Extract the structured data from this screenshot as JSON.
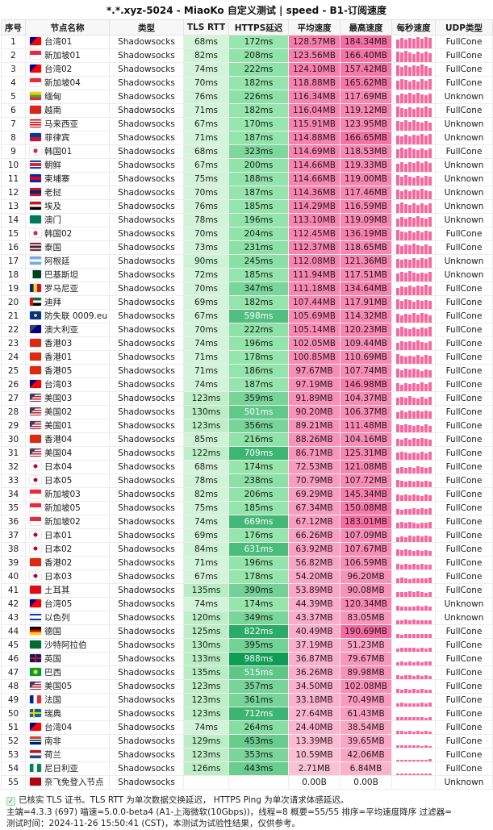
{
  "title": "*.*.xyz-5024 - MiaoKo 自定义测试 | speed - B1-订阅速度",
  "columns": [
    "序号",
    "节点名称",
    "类型",
    "TLS RTT",
    "HTTPS延迟",
    "平均速度",
    "最高速度",
    "每秒速度",
    "UDP类型"
  ],
  "colors": {
    "tls_light": "#d8f6dd",
    "tls_dark": "#b7edc2",
    "https_light": "#98e7ae",
    "https_dark": "#0d9b53",
    "avg_light": "#fbc4d7",
    "avg_dark": "#f87bab",
    "max_light": "#fbb6cd",
    "max_dark": "#f76aa1",
    "bar_pink": "#f5699f"
  },
  "rows": [
    {
      "i": 1,
      "flag": "tw",
      "name": "台湾01",
      "type": "Shadowsocks",
      "tls": "68ms",
      "https": "172ms",
      "avg": "128.57MB",
      "max": "184.34MB",
      "udp": "FullCone"
    },
    {
      "i": 2,
      "flag": "sg",
      "name": "新加坡01",
      "type": "Shadowsocks",
      "tls": "82ms",
      "https": "208ms",
      "avg": "123.56MB",
      "max": "166.40MB",
      "udp": "FullCone"
    },
    {
      "i": 3,
      "flag": "tw",
      "name": "台湾02",
      "type": "Shadowsocks",
      "tls": "74ms",
      "https": "222ms",
      "avg": "124.10MB",
      "max": "157.42MB",
      "udp": "FullCone"
    },
    {
      "i": 4,
      "flag": "sg",
      "name": "新加坡04",
      "type": "Shadowsocks",
      "tls": "70ms",
      "https": "182ms",
      "avg": "118.88MB",
      "max": "165.62MB",
      "udp": "FullCone"
    },
    {
      "i": 5,
      "flag": "mm",
      "name": "缅甸",
      "type": "Shadowsocks",
      "tls": "76ms",
      "https": "226ms",
      "avg": "116.34MB",
      "max": "117.69MB",
      "udp": "Unknown"
    },
    {
      "i": 6,
      "flag": "vn",
      "name": "越南",
      "type": "Shadowsocks",
      "tls": "71ms",
      "https": "182ms",
      "avg": "116.04MB",
      "max": "119.12MB",
      "udp": "FullCone"
    },
    {
      "i": 7,
      "flag": "my",
      "name": "马来西亚",
      "type": "Shadowsocks",
      "tls": "67ms",
      "https": "170ms",
      "avg": "115.91MB",
      "max": "123.95MB",
      "udp": "Unknown"
    },
    {
      "i": 8,
      "flag": "ph",
      "name": "菲律宾",
      "type": "Shadowsocks",
      "tls": "71ms",
      "https": "187ms",
      "avg": "114.88MB",
      "max": "166.65MB",
      "udp": "Unknown"
    },
    {
      "i": 9,
      "flag": "kr",
      "name": "韩国01",
      "type": "Shadowsocks",
      "tls": "68ms",
      "https": "323ms",
      "avg": "114.69MB",
      "max": "118.53MB",
      "udp": "FullCone"
    },
    {
      "i": 10,
      "flag": "kp",
      "name": "朝鲜",
      "type": "Shadowsocks",
      "tls": "67ms",
      "https": "200ms",
      "avg": "114.66MB",
      "max": "119.33MB",
      "udp": "Unknown"
    },
    {
      "i": 11,
      "flag": "kh",
      "name": "柬埔寨",
      "type": "Shadowsocks",
      "tls": "75ms",
      "https": "188ms",
      "avg": "114.66MB",
      "max": "119.00MB",
      "udp": "Unknown"
    },
    {
      "i": 12,
      "flag": "la",
      "name": "老挝",
      "type": "Shadowsocks",
      "tls": "70ms",
      "https": "187ms",
      "avg": "114.36MB",
      "max": "117.46MB",
      "udp": "Unknown"
    },
    {
      "i": 13,
      "flag": "eg",
      "name": "埃及",
      "type": "Shadowsocks",
      "tls": "76ms",
      "https": "185ms",
      "avg": "114.29MB",
      "max": "116.59MB",
      "udp": "Unknown"
    },
    {
      "i": 14,
      "flag": "mo",
      "name": "澳门",
      "type": "Shadowsocks",
      "tls": "78ms",
      "https": "196ms",
      "avg": "113.10MB",
      "max": "119.09MB",
      "udp": "Unknown"
    },
    {
      "i": 15,
      "flag": "kr",
      "name": "韩国02",
      "type": "Shadowsocks",
      "tls": "70ms",
      "https": "204ms",
      "avg": "112.45MB",
      "max": "136.19MB",
      "udp": "FullCone"
    },
    {
      "i": 16,
      "flag": "th",
      "name": "泰国",
      "type": "Shadowsocks",
      "tls": "73ms",
      "https": "231ms",
      "avg": "112.37MB",
      "max": "118.65MB",
      "udp": "FullCone"
    },
    {
      "i": 17,
      "flag": "ar",
      "name": "阿根廷",
      "type": "Shadowsocks",
      "tls": "90ms",
      "https": "245ms",
      "avg": "112.08MB",
      "max": "121.36MB",
      "udp": "Unknown"
    },
    {
      "i": 18,
      "flag": "pk",
      "name": "巴基斯坦",
      "type": "Shadowsocks",
      "tls": "72ms",
      "https": "185ms",
      "avg": "111.94MB",
      "max": "117.51MB",
      "udp": "Unknown"
    },
    {
      "i": 19,
      "flag": "ro",
      "name": "罗马尼亚",
      "type": "Shadowsocks",
      "tls": "70ms",
      "https": "347ms",
      "avg": "111.18MB",
      "max": "134.64MB",
      "udp": "FullCone"
    },
    {
      "i": 20,
      "flag": "ae",
      "name": "迪拜",
      "type": "Shadowsocks",
      "tls": "69ms",
      "https": "182ms",
      "avg": "107.44MB",
      "max": "117.91MB",
      "udp": "FullCone"
    },
    {
      "i": 21,
      "flag": "eu",
      "name": "防失联 0009.eu",
      "type": "Shadowsocks",
      "tls": "67ms",
      "https": "598ms",
      "avg": "105.69MB",
      "max": "114.32MB",
      "udp": "FullCone"
    },
    {
      "i": 22,
      "flag": "au",
      "name": "澳大利亚",
      "type": "Shadowsocks",
      "tls": "70ms",
      "https": "222ms",
      "avg": "105.14MB",
      "max": "120.23MB",
      "udp": "FullCone"
    },
    {
      "i": 23,
      "flag": "hk",
      "name": "香港03",
      "type": "Shadowsocks",
      "tls": "74ms",
      "https": "196ms",
      "avg": "102.05MB",
      "max": "109.44MB",
      "udp": "FullCone"
    },
    {
      "i": 24,
      "flag": "hk",
      "name": "香港01",
      "type": "Shadowsocks",
      "tls": "71ms",
      "https": "178ms",
      "avg": "100.85MB",
      "max": "110.69MB",
      "udp": "FullCone"
    },
    {
      "i": 25,
      "flag": "hk",
      "name": "香港05",
      "type": "Shadowsocks",
      "tls": "71ms",
      "https": "186ms",
      "avg": "97.67MB",
      "max": "107.74MB",
      "udp": "FullCone"
    },
    {
      "i": 26,
      "flag": "tw",
      "name": "台湾03",
      "type": "Shadowsocks",
      "tls": "74ms",
      "https": "187ms",
      "avg": "97.19MB",
      "max": "146.98MB",
      "udp": "FullCone"
    },
    {
      "i": 27,
      "flag": "us",
      "name": "美国03",
      "type": "Shadowsocks",
      "tls": "123ms",
      "https": "359ms",
      "avg": "91.89MB",
      "max": "104.37MB",
      "udp": "FullCone"
    },
    {
      "i": 28,
      "flag": "us",
      "name": "美国02",
      "type": "Shadowsocks",
      "tls": "130ms",
      "https": "501ms",
      "avg": "90.20MB",
      "max": "106.37MB",
      "udp": "FullCone"
    },
    {
      "i": 29,
      "flag": "us",
      "name": "美国01",
      "type": "Shadowsocks",
      "tls": "123ms",
      "https": "356ms",
      "avg": "89.21MB",
      "max": "111.48MB",
      "udp": "FullCone"
    },
    {
      "i": 30,
      "flag": "hk",
      "name": "香港04",
      "type": "Shadowsocks",
      "tls": "85ms",
      "https": "216ms",
      "avg": "88.26MB",
      "max": "104.16MB",
      "udp": "FullCone"
    },
    {
      "i": 31,
      "flag": "us",
      "name": "美国04",
      "type": "Shadowsocks",
      "tls": "122ms",
      "https": "709ms",
      "avg": "86.71MB",
      "max": "125.31MB",
      "udp": "FullCone"
    },
    {
      "i": 32,
      "flag": "jp",
      "name": "日本04",
      "type": "Shadowsocks",
      "tls": "68ms",
      "https": "174ms",
      "avg": "72.53MB",
      "max": "121.08MB",
      "udp": "FullCone"
    },
    {
      "i": 33,
      "flag": "jp",
      "name": "日本05",
      "type": "Shadowsocks",
      "tls": "78ms",
      "https": "238ms",
      "avg": "70.79MB",
      "max": "107.72MB",
      "udp": "FullCone"
    },
    {
      "i": 34,
      "flag": "sg",
      "name": "新加坡03",
      "type": "Shadowsocks",
      "tls": "82ms",
      "https": "206ms",
      "avg": "69.29MB",
      "max": "145.34MB",
      "udp": "FullCone"
    },
    {
      "i": 35,
      "flag": "sg",
      "name": "新加坡05",
      "type": "Shadowsocks",
      "tls": "75ms",
      "https": "185ms",
      "avg": "67.34MB",
      "max": "150.08MB",
      "udp": "FullCone"
    },
    {
      "i": 36,
      "flag": "sg",
      "name": "新加坡02",
      "type": "Shadowsocks",
      "tls": "74ms",
      "https": "669ms",
      "avg": "67.12MB",
      "max": "183.01MB",
      "udp": "FullCone"
    },
    {
      "i": 37,
      "flag": "jp",
      "name": "日本01",
      "type": "Shadowsocks",
      "tls": "69ms",
      "https": "176ms",
      "avg": "66.26MB",
      "max": "107.09MB",
      "udp": "FullCone"
    },
    {
      "i": 38,
      "flag": "jp",
      "name": "日本02",
      "type": "Shadowsocks",
      "tls": "84ms",
      "https": "631ms",
      "avg": "63.92MB",
      "max": "107.67MB",
      "udp": "FullCone"
    },
    {
      "i": 39,
      "flag": "hk",
      "name": "香港02",
      "type": "Shadowsocks",
      "tls": "71ms",
      "https": "196ms",
      "avg": "56.82MB",
      "max": "106.59MB",
      "udp": "FullCone"
    },
    {
      "i": 40,
      "flag": "jp",
      "name": "日本03",
      "type": "Shadowsocks",
      "tls": "67ms",
      "https": "178ms",
      "avg": "54.20MB",
      "max": "96.20MB",
      "udp": "FullCone"
    },
    {
      "i": 41,
      "flag": "tr",
      "name": "土耳其",
      "type": "Shadowsocks",
      "tls": "135ms",
      "https": "390ms",
      "avg": "53.89MB",
      "max": "90.08MB",
      "udp": "FullCone"
    },
    {
      "i": 42,
      "flag": "tw",
      "name": "台湾05",
      "type": "Shadowsocks",
      "tls": "74ms",
      "https": "174ms",
      "avg": "44.39MB",
      "max": "120.34MB",
      "udp": "Unknown"
    },
    {
      "i": 43,
      "flag": "il",
      "name": "以色列",
      "type": "Shadowsocks",
      "tls": "120ms",
      "https": "349ms",
      "avg": "43.37MB",
      "max": "83.05MB",
      "udp": "Unknown"
    },
    {
      "i": 44,
      "flag": "de",
      "name": "德国",
      "type": "Shadowsocks",
      "tls": "125ms",
      "https": "822ms",
      "avg": "40.49MB",
      "max": "190.69MB",
      "udp": "FullCone"
    },
    {
      "i": 45,
      "flag": "sa",
      "name": "沙特阿拉伯",
      "type": "Shadowsocks",
      "tls": "130ms",
      "https": "395ms",
      "avg": "37.19MB",
      "max": "51.23MB",
      "udp": "FullCone"
    },
    {
      "i": 46,
      "flag": "gb",
      "name": "英国",
      "type": "Shadowsocks",
      "tls": "133ms",
      "https": "988ms",
      "avg": "36.87MB",
      "max": "79.67MB",
      "udp": "FullCone"
    },
    {
      "i": 47,
      "flag": "br",
      "name": "巴西",
      "type": "Shadowsocks",
      "tls": "135ms",
      "https": "515ms",
      "avg": "36.26MB",
      "max": "89.98MB",
      "udp": "FullCone"
    },
    {
      "i": 48,
      "flag": "us",
      "name": "美国05",
      "type": "Shadowsocks",
      "tls": "123ms",
      "https": "357ms",
      "avg": "34.50MB",
      "max": "102.08MB",
      "udp": "FullCone"
    },
    {
      "i": 49,
      "flag": "fr",
      "name": "法国",
      "type": "Shadowsocks",
      "tls": "123ms",
      "https": "361ms",
      "avg": "33.18MB",
      "max": "70.49MB",
      "udp": "FullCone"
    },
    {
      "i": 50,
      "flag": "se",
      "name": "瑞典",
      "type": "Shadowsocks",
      "tls": "123ms",
      "https": "712ms",
      "avg": "27.64MB",
      "max": "61.43MB",
      "udp": "FullCone"
    },
    {
      "i": 51,
      "flag": "tw",
      "name": "台湾04",
      "type": "Shadowsocks",
      "tls": "74ms",
      "https": "264ms",
      "avg": "24.40MB",
      "max": "38.54MB",
      "udp": "FullCone"
    },
    {
      "i": 52,
      "flag": "za",
      "name": "南非",
      "type": "Shadowsocks",
      "tls": "129ms",
      "https": "453ms",
      "avg": "13.39MB",
      "max": "39.65MB",
      "udp": "FullCone"
    },
    {
      "i": 53,
      "flag": "nl",
      "name": "荷兰",
      "type": "Shadowsocks",
      "tls": "123ms",
      "https": "353ms",
      "avg": "10.59MB",
      "max": "42.06MB",
      "udp": "FullCone"
    },
    {
      "i": 54,
      "flag": "ng",
      "name": "尼日利亚",
      "type": "Shadowsocks",
      "tls": "126ms",
      "https": "443ms",
      "avg": "2.71MB",
      "max": "6.84MB",
      "udp": "FullCone"
    },
    {
      "i": 55,
      "flag": "nf",
      "name": "奈飞免登入节点",
      "type": "Shadowsocks",
      "tls": "",
      "https": "",
      "avg": "0.00B",
      "max": "0.00B",
      "udp": "Unknown"
    }
  ],
  "footer": {
    "line1": "已核实 TLS 证书。TLS RTT 为单次数据交换延迟，  HTTPS Ping 为单次请求体感延迟。",
    "check": "✓",
    "line2": "主端=4.3.3 (697) 喵速=5.0.0-beta4 (A1-上海微软(10Gbps))，线程=8 概要=55/55 排序=平均速度降序 过滤器=",
    "line3": "测试时间：2024-11-26 15:50:41 (CST)，本测试为试验性结果，仅供参考。"
  }
}
